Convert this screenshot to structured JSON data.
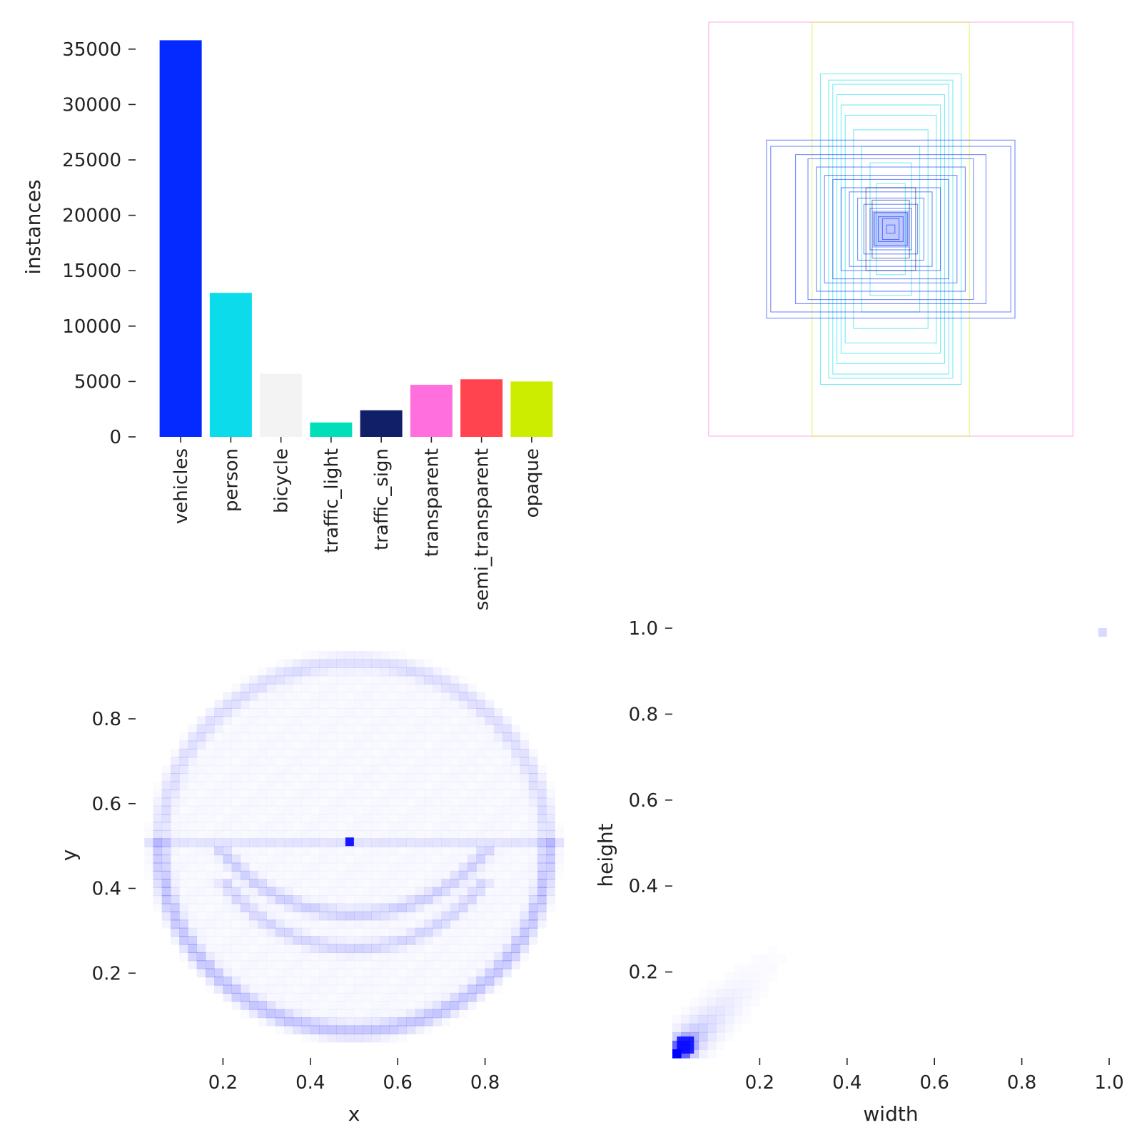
{
  "colors": {
    "vehicles": "#042aff",
    "person": "#0bdbeb",
    "bicycle": "#f3f3f3",
    "traffic_light": "#00dfb7",
    "traffic_sign": "#111f68",
    "transparent": "#ff6fdd",
    "semi_transparent": "#ff444f",
    "opaque": "#cced00",
    "density": "#0000ff"
  },
  "chart_data": [
    {
      "id": "class-instances",
      "type": "bar",
      "categories": [
        "vehicles",
        "person",
        "bicycle",
        "traffic_light",
        "traffic_sign",
        "transparent",
        "semi_transparent",
        "opaque"
      ],
      "values": [
        35800,
        13000,
        5700,
        1300,
        2400,
        4700,
        5200,
        5000
      ],
      "ylabel": "instances",
      "ylim": [
        0,
        37500
      ],
      "yticks": [
        "0",
        "5000",
        "10000",
        "15000",
        "20000",
        "25000",
        "30000",
        "35000"
      ],
      "grid": false
    },
    {
      "id": "box-shapes",
      "type": "diagram",
      "description_free": true,
      "boxes": [
        {
          "w": 0.88,
          "h": 1.0,
          "class": "transparent"
        },
        {
          "w": 0.38,
          "h": 1.0,
          "class": "opaque"
        },
        {
          "w": 0.34,
          "h": 0.75,
          "class": "person"
        },
        {
          "w": 0.3,
          "h": 0.72,
          "class": "person"
        },
        {
          "w": 0.28,
          "h": 0.7,
          "class": "person"
        },
        {
          "w": 0.26,
          "h": 0.65,
          "class": "person"
        },
        {
          "w": 0.24,
          "h": 0.6,
          "class": "person"
        },
        {
          "w": 0.22,
          "h": 0.55,
          "class": "person"
        },
        {
          "w": 0.18,
          "h": 0.48,
          "class": "person"
        },
        {
          "w": 0.14,
          "h": 0.4,
          "class": "person"
        },
        {
          "w": 0.1,
          "h": 0.32,
          "class": "person"
        },
        {
          "w": 0.07,
          "h": 0.22,
          "class": "person"
        },
        {
          "w": 0.6,
          "h": 0.43,
          "class": "vehicles"
        },
        {
          "w": 0.58,
          "h": 0.4,
          "class": "vehicles"
        },
        {
          "w": 0.46,
          "h": 0.36,
          "class": "vehicles"
        },
        {
          "w": 0.4,
          "h": 0.34,
          "class": "vehicles"
        },
        {
          "w": 0.36,
          "h": 0.3,
          "class": "vehicles"
        },
        {
          "w": 0.32,
          "h": 0.26,
          "class": "vehicles"
        },
        {
          "w": 0.28,
          "h": 0.24,
          "class": "vehicles"
        },
        {
          "w": 0.24,
          "h": 0.2,
          "class": "vehicles"
        },
        {
          "w": 0.2,
          "h": 0.18,
          "class": "vehicles"
        },
        {
          "w": 0.16,
          "h": 0.15,
          "class": "vehicles"
        },
        {
          "w": 0.13,
          "h": 0.12,
          "class": "vehicles"
        },
        {
          "w": 0.1,
          "h": 0.1,
          "class": "vehicles"
        },
        {
          "w": 0.08,
          "h": 0.08,
          "class": "vehicles"
        },
        {
          "w": 0.06,
          "h": 0.06,
          "class": "vehicles"
        },
        {
          "w": 0.04,
          "h": 0.05,
          "class": "vehicles"
        },
        {
          "w": 0.02,
          "h": 0.02,
          "class": "vehicles"
        },
        {
          "w": 0.12,
          "h": 0.2,
          "class": "traffic_sign"
        },
        {
          "w": 0.09,
          "h": 0.14,
          "class": "traffic_sign"
        }
      ]
    },
    {
      "id": "center-density",
      "type": "heatmap",
      "xlabel": "x",
      "ylabel": "y",
      "xlim": [
        0,
        1
      ],
      "ylim": [
        0,
        0.96
      ],
      "xticks": [
        "0.2",
        "0.4",
        "0.6",
        "0.8"
      ],
      "yticks": [
        "0.2",
        "0.4",
        "0.6",
        "0.8"
      ],
      "peak": {
        "x": 0.49,
        "y": 0.51
      }
    },
    {
      "id": "size-density",
      "type": "heatmap",
      "xlabel": "width",
      "ylabel": "height",
      "xlim": [
        0,
        1.0
      ],
      "ylim": [
        0,
        1.0
      ],
      "xticks": [
        "0.2",
        "0.4",
        "0.6",
        "0.8",
        "1.0"
      ],
      "yticks": [
        "0.2",
        "0.4",
        "0.6",
        "0.8",
        "1.0"
      ],
      "peak": {
        "x": 0.03,
        "y": 0.03
      }
    }
  ]
}
